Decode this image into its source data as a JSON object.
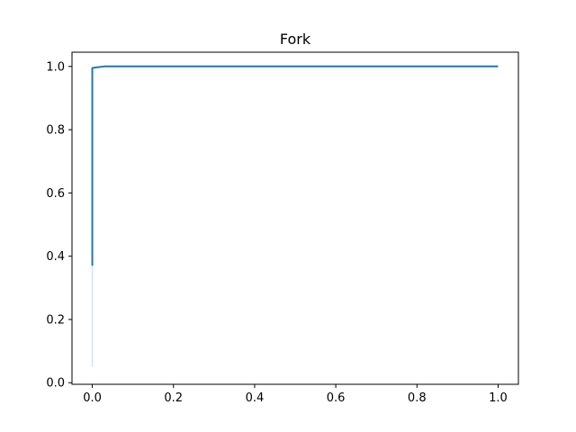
{
  "chart_data": {
    "type": "line",
    "title": "Fork",
    "xlabel": "",
    "ylabel": "",
    "xlim": [
      -0.05,
      1.05
    ],
    "ylim": [
      -0.005,
      1.045
    ],
    "xticks": [
      0.0,
      0.2,
      0.4,
      0.6,
      0.8,
      1.0
    ],
    "xtick_labels": [
      "0.0",
      "0.2",
      "0.4",
      "0.6",
      "0.8",
      "1.0"
    ],
    "yticks": [
      0.0,
      0.2,
      0.4,
      0.6,
      0.8,
      1.0
    ],
    "ytick_labels": [
      "0.0",
      "0.2",
      "0.4",
      "0.6",
      "0.8",
      "1.0"
    ],
    "grid": false,
    "legend": "none",
    "series": [
      {
        "color": "#1f77b4",
        "x": [
          0.0,
          0.0,
          0.0,
          0.0,
          0.01,
          0.03,
          1.0
        ],
        "y": [
          0.37,
          0.5,
          0.9,
          0.995,
          0.997,
          1.0,
          1.0
        ]
      }
    ],
    "bands": [
      {
        "color": "#cfe4f5",
        "x": 0.0,
        "y_low": 0.05,
        "y_high": 0.37
      }
    ]
  }
}
